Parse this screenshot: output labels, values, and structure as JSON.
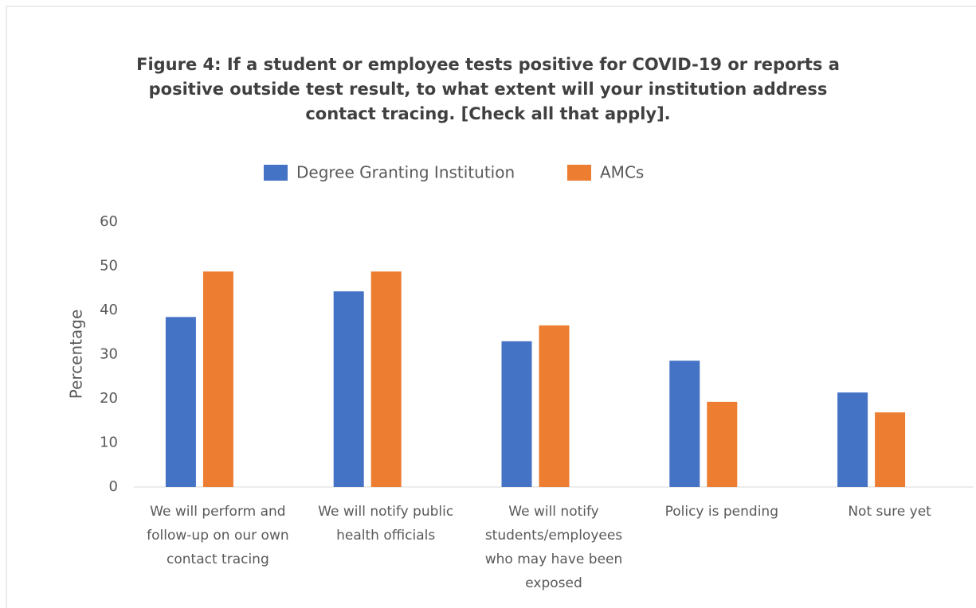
{
  "chart_data": {
    "type": "bar",
    "title": "Figure 4:  If a student or employee tests positive for COVID-19 or reports a positive outside test result, to what extent will your institution address contact tracing.  [Check all that apply].",
    "y_label": "Percentage",
    "categories": [
      "We will perform and follow-up on our own contact tracing",
      "We will notify public health officials",
      "We will notify students/employees who may have been exposed",
      "Policy is pending",
      "Not sure yet"
    ],
    "series": [
      {
        "name": "Degree Granting Institution",
        "color": "#4472c4",
        "values": [
          38.5,
          44.3,
          33,
          28.6,
          21.4
        ]
      },
      {
        "name": "AMCs",
        "color": "#ed7d31",
        "values": [
          48.8,
          48.8,
          36.6,
          19.3,
          16.9
        ]
      }
    ],
    "ylim": [
      0,
      60
    ],
    "yticks": [
      0,
      10,
      20,
      30,
      40,
      50,
      60
    ],
    "grid": false,
    "legend": "top"
  }
}
